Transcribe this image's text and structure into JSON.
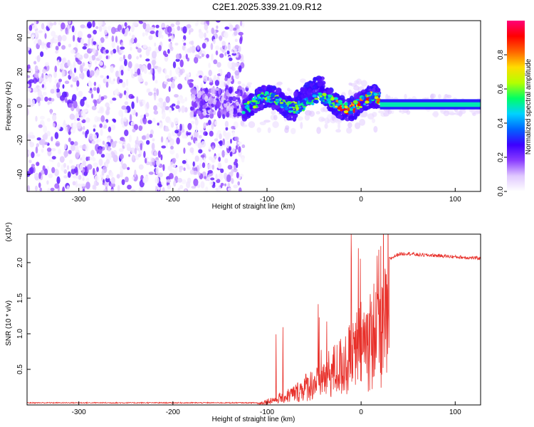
{
  "title": "C2E1.2025.339.21.09.R12",
  "chart_data": [
    {
      "type": "heatmap",
      "name": "spectrogram",
      "xlabel": "Height of straight line (km)",
      "ylabel": "Frequency (Hz)",
      "xlim": [
        -355,
        127
      ],
      "ylim": [
        -50,
        50
      ],
      "xticks": [
        -300,
        -200,
        -100,
        0,
        100
      ],
      "yticks": [
        -40,
        -20,
        0,
        20,
        40
      ],
      "colorbar": {
        "label": "Normalized spectral amplitude",
        "range": [
          0,
          1
        ],
        "ticks": [
          0.0,
          0.2,
          0.4,
          0.6,
          0.8
        ],
        "tick_labels": [
          "0.0",
          "0.2",
          "0.4",
          "0.6",
          "0.8"
        ],
        "colors": [
          "#ffffff",
          "#e0c8ff",
          "#8a3cff",
          "#3c00ff",
          "#0064ff",
          "#00d2ff",
          "#00ff64",
          "#b4ff00",
          "#ffdc00",
          "#ff6400",
          "#ff0000",
          "#ff0078"
        ]
      },
      "description_regions": [
        {
          "x_range": [
            -355,
            -125
          ],
          "freq_range": [
            -50,
            50
          ],
          "amplitude": [
            0.02,
            0.25
          ]
        },
        {
          "x_range": [
            -125,
            20
          ],
          "freq_range": [
            -8,
            14
          ],
          "amplitude": [
            0.3,
            0.95
          ]
        },
        {
          "x_range": [
            20,
            127
          ],
          "freq_range": [
            -2,
            4
          ],
          "amplitude": [
            0.4,
            0.6
          ]
        }
      ]
    },
    {
      "type": "line",
      "name": "snr",
      "xlabel": "Height of straight line (km)",
      "ylabel": "SNR (10 * v/v)",
      "multiplier": "(x10⁴)",
      "xlim": [
        -355,
        127
      ],
      "ylim": [
        0,
        24000
      ],
      "xticks": [
        -300,
        -200,
        -100,
        0,
        100
      ],
      "yticks": [
        5000,
        10000,
        15000,
        20000
      ],
      "ytick_labels": [
        "0.5",
        "1.0",
        "1.5",
        "2.0"
      ],
      "color": "#e8302a",
      "series": [
        {
          "name": "SNR",
          "x": [
            -355,
            -110,
            -100,
            -90,
            -80,
            -70,
            -60,
            -50,
            -40,
            -30,
            -20,
            -10,
            0,
            10,
            20,
            30,
            40,
            50,
            60,
            80,
            100,
            127
          ],
          "values": [
            300,
            300,
            900,
            1500,
            2200,
            3000,
            4500,
            5500,
            7000,
            8500,
            10000,
            12000,
            15000,
            17000,
            19000,
            20500,
            21200,
            21300,
            21100,
            21000,
            20800,
            20600
          ]
        }
      ]
    }
  ]
}
